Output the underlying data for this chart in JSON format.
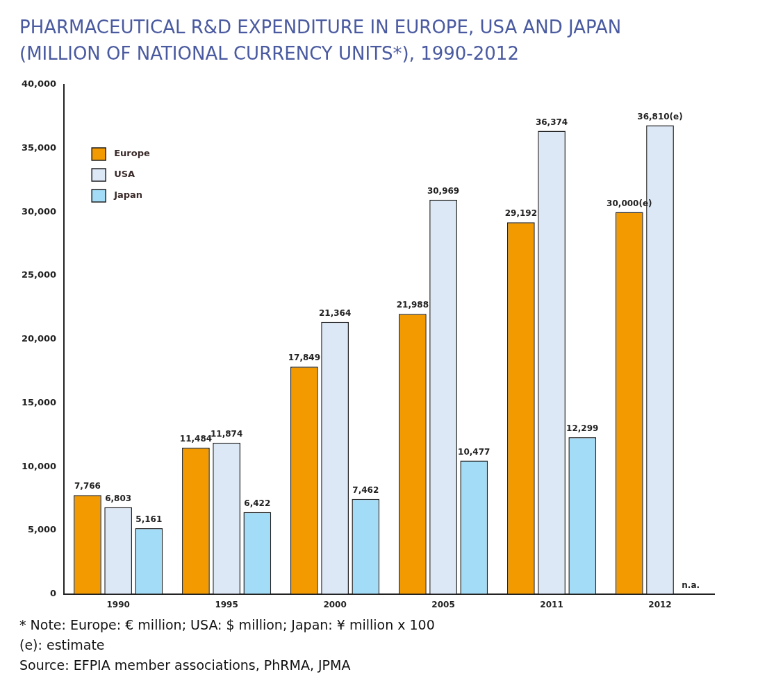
{
  "chart_data": {
    "type": "bar",
    "title": "PHARMACEUTICAL R&D EXPENDITURE IN EUROPE, USA AND JAPAN (MILLION OF NATIONAL CURRENCY UNITS*), 1990-2012",
    "categories": [
      "1990",
      "1995",
      "2000",
      "2005",
      "2011",
      "2012"
    ],
    "series": [
      {
        "name": "Europe",
        "color": "#f29a00",
        "values": [
          7766,
          11484,
          17849,
          21988,
          29192,
          30000
        ],
        "value_labels": [
          "7,766",
          "11,484",
          "17,849",
          "21,988",
          "29,192",
          "30,000(e)"
        ]
      },
      {
        "name": "USA",
        "color": "#dce8f6",
        "values": [
          6803,
          11874,
          21364,
          30969,
          36374,
          36810
        ],
        "value_labels": [
          "6,803",
          "11,874",
          "21,364",
          "30,969",
          "36,374",
          "36,810(e)"
        ]
      },
      {
        "name": "Japan",
        "color": "#a3dcf6",
        "values": [
          5161,
          6422,
          7462,
          10477,
          12299,
          null
        ],
        "value_labels": [
          "5,161",
          "6,422",
          "7,462",
          "10,477",
          "12,299",
          "n.a."
        ]
      }
    ],
    "ylim": [
      0,
      40000
    ],
    "yticks": [
      {
        "value": 0,
        "label": "0"
      },
      {
        "value": 5000,
        "label": "5,000"
      },
      {
        "value": 10000,
        "label": "10,000"
      },
      {
        "value": 15000,
        "label": "15,000"
      },
      {
        "value": 20000,
        "label": "20,000"
      },
      {
        "value": 25000,
        "label": "25,000"
      },
      {
        "value": 30000,
        "label": "30,000"
      },
      {
        "value": 35000,
        "label": "35,000"
      },
      {
        "value": 40000,
        "label": "40,000"
      }
    ],
    "grid": false,
    "legend": "top left",
    "annotations": [
      "* Note: Europe: € million; USA: $ million; Japan: ¥ million x 100",
      "(e): estimate",
      "Source: EFPIA member associations, PhRMA, JPMA"
    ]
  }
}
